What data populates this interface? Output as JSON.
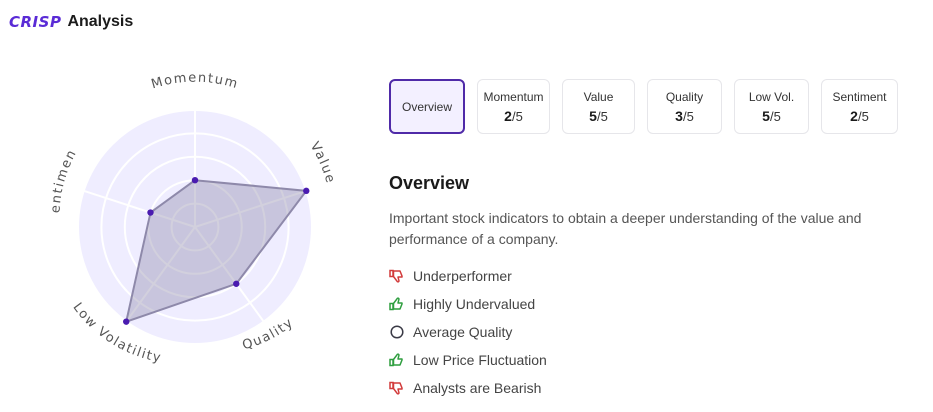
{
  "header": {
    "logo": "CRISP",
    "title": "Analysis"
  },
  "radar": {
    "axes": [
      "Momentum",
      "Value",
      "Quality",
      "Low Volatility",
      "Sentiment"
    ],
    "max": 5,
    "values": [
      2,
      5,
      3,
      5,
      2
    ],
    "colors": {
      "background": "#efedff",
      "polygon": "#8e89aa",
      "point": "#4a1bb0"
    }
  },
  "tabs": [
    {
      "label": "Overview",
      "score": null,
      "max": null,
      "active": true
    },
    {
      "label": "Momentum",
      "score": "2",
      "max": "/5"
    },
    {
      "label": "Value",
      "score": "5",
      "max": "/5"
    },
    {
      "label": "Quality",
      "score": "3",
      "max": "/5"
    },
    {
      "label": "Low Vol.",
      "score": "5",
      "max": "/5"
    },
    {
      "label": "Sentiment",
      "score": "2",
      "max": "/5"
    }
  ],
  "overview": {
    "title": "Overview",
    "description": "Important stock indicators to obtain a deeper understanding of the value and performance of a company."
  },
  "indicators": [
    {
      "icon": "thumbs-down-icon",
      "label": "Underperformer",
      "color": "#d23a3a"
    },
    {
      "icon": "thumbs-up-icon",
      "label": "Highly Undervalued",
      "color": "#2e9e3f"
    },
    {
      "icon": "neutral-circle-icon",
      "label": "Average Quality",
      "color": "#3a3a46"
    },
    {
      "icon": "thumbs-up-icon",
      "label": "Low Price Fluctuation",
      "color": "#2e9e3f"
    },
    {
      "icon": "thumbs-down-icon",
      "label": "Analysts are Bearish",
      "color": "#d23a3a"
    }
  ]
}
